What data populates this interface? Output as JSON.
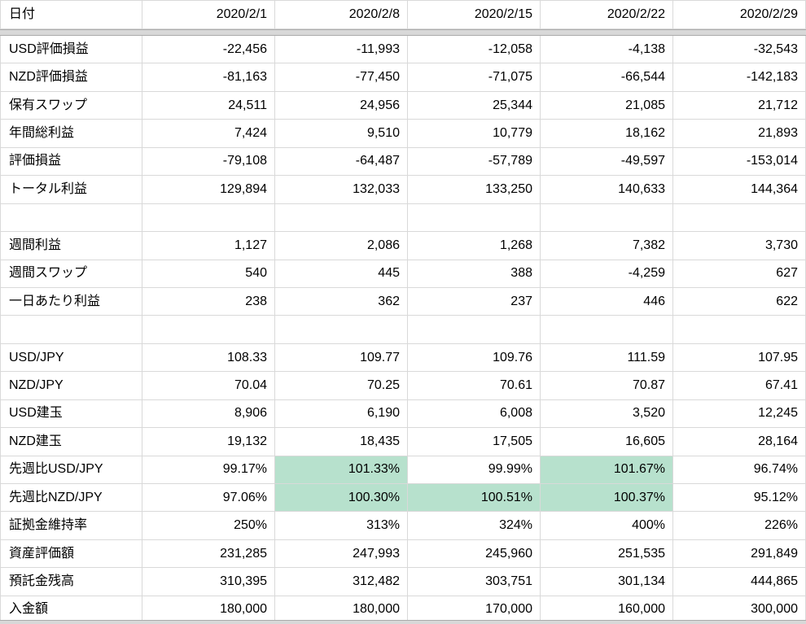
{
  "table": {
    "highlight_color": "#b7e1cd",
    "header": [
      "日付",
      "2020/2/1",
      "2020/2/8",
      "2020/2/15",
      "2020/2/22",
      "2020/2/29"
    ],
    "rows": [
      {
        "label": "USD評価損益",
        "values": [
          "-22,456",
          "-11,993",
          "-12,058",
          "-4,138",
          "-32,543"
        ]
      },
      {
        "label": "NZD評価損益",
        "values": [
          "-81,163",
          "-77,450",
          "-71,075",
          "-66,544",
          "-142,183"
        ]
      },
      {
        "label": "保有スワップ",
        "values": [
          "24,511",
          "24,956",
          "25,344",
          "21,085",
          "21,712"
        ]
      },
      {
        "label": "年間総利益",
        "values": [
          "7,424",
          "9,510",
          "10,779",
          "18,162",
          "21,893"
        ]
      },
      {
        "label": "評価損益",
        "values": [
          "-79,108",
          "-64,487",
          "-57,789",
          "-49,597",
          "-153,014"
        ]
      },
      {
        "label": "トータル利益",
        "values": [
          "129,894",
          "132,033",
          "133,250",
          "140,633",
          "144,364"
        ]
      },
      {
        "label": "",
        "values": [
          "",
          "",
          "",
          "",
          ""
        ]
      },
      {
        "label": "週間利益",
        "values": [
          "1,127",
          "2,086",
          "1,268",
          "7,382",
          "3,730"
        ]
      },
      {
        "label": "週間スワップ",
        "values": [
          "540",
          "445",
          "388",
          "-4,259",
          "627"
        ]
      },
      {
        "label": "一日あたり利益",
        "values": [
          "238",
          "362",
          "237",
          "446",
          "622"
        ]
      },
      {
        "label": "",
        "values": [
          "",
          "",
          "",
          "",
          ""
        ]
      },
      {
        "label": "USD/JPY",
        "values": [
          "108.33",
          "109.77",
          "109.76",
          "111.59",
          "107.95"
        ]
      },
      {
        "label": "NZD/JPY",
        "values": [
          "70.04",
          "70.25",
          "70.61",
          "70.87",
          "67.41"
        ]
      },
      {
        "label": "USD建玉",
        "values": [
          "8,906",
          "6,190",
          "6,008",
          "3,520",
          "12,245"
        ]
      },
      {
        "label": "NZD建玉",
        "values": [
          "19,132",
          "18,435",
          "17,505",
          "16,605",
          "28,164"
        ]
      },
      {
        "label": "先週比USD/JPY",
        "values": [
          "99.17%",
          "101.33%",
          "99.99%",
          "101.67%",
          "96.74%"
        ]
      },
      {
        "label": "先週比NZD/JPY",
        "values": [
          "97.06%",
          "100.30%",
          "100.51%",
          "100.37%",
          "95.12%"
        ]
      },
      {
        "label": "証拠金維持率",
        "values": [
          "250%",
          "313%",
          "324%",
          "400%",
          "226%"
        ]
      },
      {
        "label": "資産評価額",
        "values": [
          "231,285",
          "247,993",
          "245,960",
          "251,535",
          "291,849"
        ]
      },
      {
        "label": "預託金残高",
        "values": [
          "310,395",
          "312,482",
          "303,751",
          "301,134",
          "444,865"
        ]
      },
      {
        "label": "入金額",
        "values": [
          "180,000",
          "180,000",
          "170,000",
          "160,000",
          "300,000"
        ]
      }
    ],
    "highlights": [
      [
        15,
        1
      ],
      [
        15,
        3
      ],
      [
        16,
        1
      ],
      [
        16,
        2
      ],
      [
        16,
        3
      ]
    ]
  }
}
